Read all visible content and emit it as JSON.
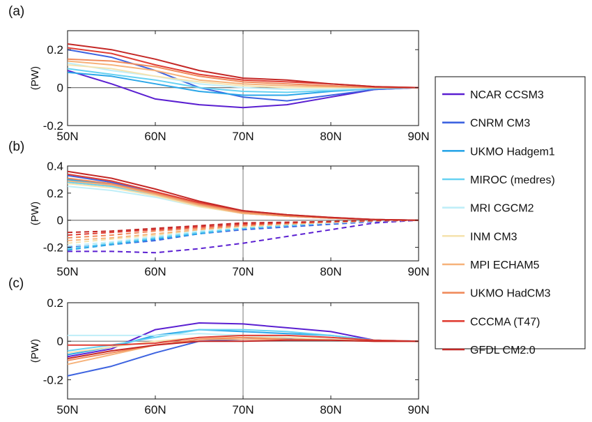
{
  "chart_data": [
    {
      "type": "line",
      "panel_label": "(a)",
      "ylabel": "(PW)",
      "xlim": [
        50,
        90
      ],
      "ylim": [
        -0.2,
        0.3
      ],
      "yticks": [
        -0.2,
        0,
        0.2
      ],
      "ytick_labels": [
        "-0.2",
        "0",
        "0.2"
      ],
      "xticks": [
        50,
        60,
        70,
        80,
        90
      ],
      "xtick_labels": [
        "50N",
        "60N",
        "70N",
        "80N",
        "90N"
      ],
      "reference_x": 70,
      "x": [
        50,
        55,
        60,
        65,
        70,
        75,
        80,
        85,
        90
      ],
      "series": [
        {
          "name": "NCAR CCSM3",
          "values": [
            0.09,
            0.02,
            -0.06,
            -0.09,
            -0.105,
            -0.09,
            -0.05,
            -0.01,
            0
          ]
        },
        {
          "name": "CNRM CM3",
          "values": [
            0.2,
            0.16,
            0.09,
            0.0,
            -0.05,
            -0.07,
            -0.04,
            -0.01,
            0
          ]
        },
        {
          "name": "UKMO Hadgem1",
          "values": [
            0.08,
            0.06,
            0.02,
            -0.02,
            -0.04,
            -0.04,
            -0.02,
            -0.005,
            0
          ]
        },
        {
          "name": "MIROC (medres)",
          "values": [
            0.1,
            0.07,
            0.04,
            0.0,
            -0.02,
            -0.025,
            -0.015,
            -0.005,
            0
          ]
        },
        {
          "name": "MRI CGCM2",
          "values": [
            0.13,
            0.09,
            0.06,
            0.02,
            0.0,
            -0.01,
            -0.01,
            0,
            0
          ]
        },
        {
          "name": "INM CM3",
          "values": [
            0.12,
            0.1,
            0.06,
            0.03,
            0.01,
            0.0,
            0.0,
            0,
            0
          ]
        },
        {
          "name": "MPI ECHAM5",
          "values": [
            0.14,
            0.12,
            0.09,
            0.04,
            0.02,
            0.01,
            0.005,
            0,
            0
          ]
        },
        {
          "name": "UKMO HadCM3",
          "values": [
            0.15,
            0.14,
            0.11,
            0.06,
            0.03,
            0.02,
            0.01,
            0,
            0
          ]
        },
        {
          "name": "CCCMA (T47)",
          "values": [
            0.21,
            0.18,
            0.12,
            0.07,
            0.04,
            0.03,
            0.02,
            0.005,
            0
          ]
        },
        {
          "name": "GFDL CM2.0",
          "values": [
            0.23,
            0.2,
            0.15,
            0.09,
            0.05,
            0.04,
            0.02,
            0.005,
            0
          ]
        }
      ]
    },
    {
      "type": "line",
      "panel_label": "(b)",
      "ylabel": "(PW)",
      "xlim": [
        50,
        90
      ],
      "ylim": [
        -0.3,
        0.4
      ],
      "yticks": [
        -0.2,
        0,
        0.2,
        0.4
      ],
      "ytick_labels": [
        "-0.2",
        "0",
        "0.2",
        "0.4"
      ],
      "xticks": [
        50,
        60,
        70,
        80,
        90
      ],
      "xtick_labels": [
        "50N",
        "60N",
        "70N",
        "80N",
        "90N"
      ],
      "reference_x": 70,
      "x": [
        50,
        55,
        60,
        65,
        70,
        75,
        80,
        85,
        90
      ],
      "series": [
        {
          "name": "NCAR CCSM3",
          "values": [
            0.3,
            0.27,
            0.2,
            0.12,
            0.06,
            0.03,
            0.015,
            0.005,
            0
          ],
          "dashed": [
            -0.23,
            -0.23,
            -0.24,
            -0.21,
            -0.17,
            -0.12,
            -0.07,
            -0.02,
            0
          ]
        },
        {
          "name": "CNRM CM3",
          "values": [
            0.33,
            0.28,
            0.2,
            0.12,
            0.06,
            0.03,
            0.015,
            0.005,
            0
          ],
          "dashed": [
            -0.2,
            -0.18,
            -0.15,
            -0.1,
            -0.07,
            -0.05,
            -0.03,
            -0.01,
            0
          ]
        },
        {
          "name": "UKMO Hadgem1",
          "values": [
            0.3,
            0.26,
            0.19,
            0.11,
            0.05,
            0.03,
            0.015,
            0.005,
            0
          ],
          "dashed": [
            -0.22,
            -0.18,
            -0.14,
            -0.1,
            -0.06,
            -0.04,
            -0.02,
            -0.005,
            0
          ]
        },
        {
          "name": "MIROC (medres)",
          "values": [
            0.28,
            0.25,
            0.18,
            0.11,
            0.05,
            0.03,
            0.015,
            0.005,
            0
          ],
          "dashed": [
            -0.21,
            -0.17,
            -0.13,
            -0.09,
            -0.06,
            -0.04,
            -0.02,
            -0.005,
            0
          ]
        },
        {
          "name": "MRI CGCM2",
          "values": [
            0.25,
            0.22,
            0.17,
            0.1,
            0.05,
            0.03,
            0.015,
            0.005,
            0
          ],
          "dashed": [
            -0.19,
            -0.16,
            -0.12,
            -0.08,
            -0.05,
            -0.03,
            -0.02,
            -0.005,
            0
          ]
        },
        {
          "name": "INM CM3",
          "values": [
            0.27,
            0.24,
            0.18,
            0.1,
            0.05,
            0.03,
            0.015,
            0.005,
            0
          ],
          "dashed": [
            -0.17,
            -0.14,
            -0.11,
            -0.07,
            -0.05,
            -0.03,
            -0.015,
            -0.005,
            0
          ]
        },
        {
          "name": "MPI ECHAM5",
          "values": [
            0.29,
            0.26,
            0.19,
            0.11,
            0.05,
            0.03,
            0.015,
            0.005,
            0
          ],
          "dashed": [
            -0.15,
            -0.13,
            -0.1,
            -0.07,
            -0.04,
            -0.03,
            -0.015,
            -0.005,
            0
          ]
        },
        {
          "name": "UKMO HadCM3",
          "values": [
            0.31,
            0.27,
            0.2,
            0.12,
            0.06,
            0.03,
            0.015,
            0.005,
            0
          ],
          "dashed": [
            -0.13,
            -0.11,
            -0.08,
            -0.06,
            -0.04,
            -0.02,
            -0.01,
            -0.005,
            0
          ]
        },
        {
          "name": "CCCMA (T47)",
          "values": [
            0.34,
            0.29,
            0.21,
            0.13,
            0.07,
            0.04,
            0.02,
            0.005,
            0
          ],
          "dashed": [
            -0.11,
            -0.09,
            -0.07,
            -0.05,
            -0.03,
            -0.02,
            -0.01,
            0,
            0
          ]
        },
        {
          "name": "GFDL CM2.0",
          "values": [
            0.36,
            0.31,
            0.23,
            0.14,
            0.07,
            0.04,
            0.02,
            0.005,
            0
          ],
          "dashed": [
            -0.09,
            -0.08,
            -0.06,
            -0.04,
            -0.02,
            -0.015,
            -0.01,
            0,
            0
          ]
        }
      ]
    },
    {
      "type": "line",
      "panel_label": "(c)",
      "ylabel": "(PW)",
      "xlim": [
        50,
        90
      ],
      "ylim": [
        -0.3,
        0.2
      ],
      "yticks": [
        -0.2,
        0,
        0.2
      ],
      "ytick_labels": [
        "-0.2",
        "0",
        "0.2"
      ],
      "xticks": [
        50,
        60,
        70,
        80,
        90
      ],
      "xtick_labels": [
        "50N",
        "60N",
        "70N",
        "80N",
        "90N"
      ],
      "reference_x": 70,
      "x": [
        50,
        55,
        60,
        65,
        70,
        75,
        80,
        85,
        90
      ],
      "series": [
        {
          "name": "NCAR CCSM3",
          "values": [
            -0.08,
            -0.04,
            0.06,
            0.095,
            0.09,
            0.07,
            0.05,
            0.005,
            0
          ]
        },
        {
          "name": "CNRM CM3",
          "values": [
            -0.18,
            -0.13,
            -0.06,
            0.0,
            0.01,
            0.015,
            0.01,
            0.005,
            0
          ]
        },
        {
          "name": "UKMO Hadgem1",
          "values": [
            -0.07,
            -0.03,
            0.03,
            0.06,
            0.05,
            0.04,
            0.03,
            0.005,
            0
          ]
        },
        {
          "name": "MIROC (medres)",
          "values": [
            -0.05,
            -0.02,
            0.02,
            0.06,
            0.06,
            0.05,
            0.03,
            0.005,
            0
          ]
        },
        {
          "name": "MRI CGCM2",
          "values": [
            0.03,
            0.03,
            0.03,
            0.04,
            0.03,
            0.02,
            0.01,
            0.005,
            0
          ]
        },
        {
          "name": "INM CM3",
          "values": [
            -0.06,
            -0.03,
            0.0,
            0.02,
            0.02,
            0.02,
            0.01,
            0.005,
            0
          ]
        },
        {
          "name": "MPI ECHAM5",
          "values": [
            -0.12,
            -0.07,
            -0.02,
            0.01,
            0.01,
            0.01,
            0.005,
            0.0,
            0
          ]
        },
        {
          "name": "UKMO HadCM3",
          "values": [
            -0.1,
            -0.06,
            -0.02,
            0.01,
            0.02,
            0.01,
            0.005,
            0.0,
            0
          ]
        },
        {
          "name": "CCCMA (T47)",
          "values": [
            -0.02,
            -0.02,
            -0.01,
            0.02,
            0.03,
            0.03,
            0.02,
            0.005,
            0
          ]
        },
        {
          "name": "GFDL CM2.0",
          "values": [
            -0.09,
            -0.05,
            -0.02,
            0.0,
            0.0,
            0.005,
            0.005,
            0.0,
            0
          ]
        }
      ]
    }
  ],
  "legend": {
    "items": [
      {
        "label": "NCAR CCSM3",
        "color": "#5a1fd1"
      },
      {
        "label": "CNRM CM3",
        "color": "#3d63e0"
      },
      {
        "label": "UKMO Hadgem1",
        "color": "#2aa6e8"
      },
      {
        "label": "MIROC (medres)",
        "color": "#67d2f2"
      },
      {
        "label": "MRI CGCM2",
        "color": "#bfeef8"
      },
      {
        "label": "INM CM3",
        "color": "#f5e3b0"
      },
      {
        "label": "MPI ECHAM5",
        "color": "#f6b27a"
      },
      {
        "label": "UKMO HadCM3",
        "color": "#f08b5c"
      },
      {
        "label": "CCCMA (T47)",
        "color": "#e03f35"
      },
      {
        "label": "GFDL CM2.0",
        "color": "#c42826"
      }
    ]
  }
}
